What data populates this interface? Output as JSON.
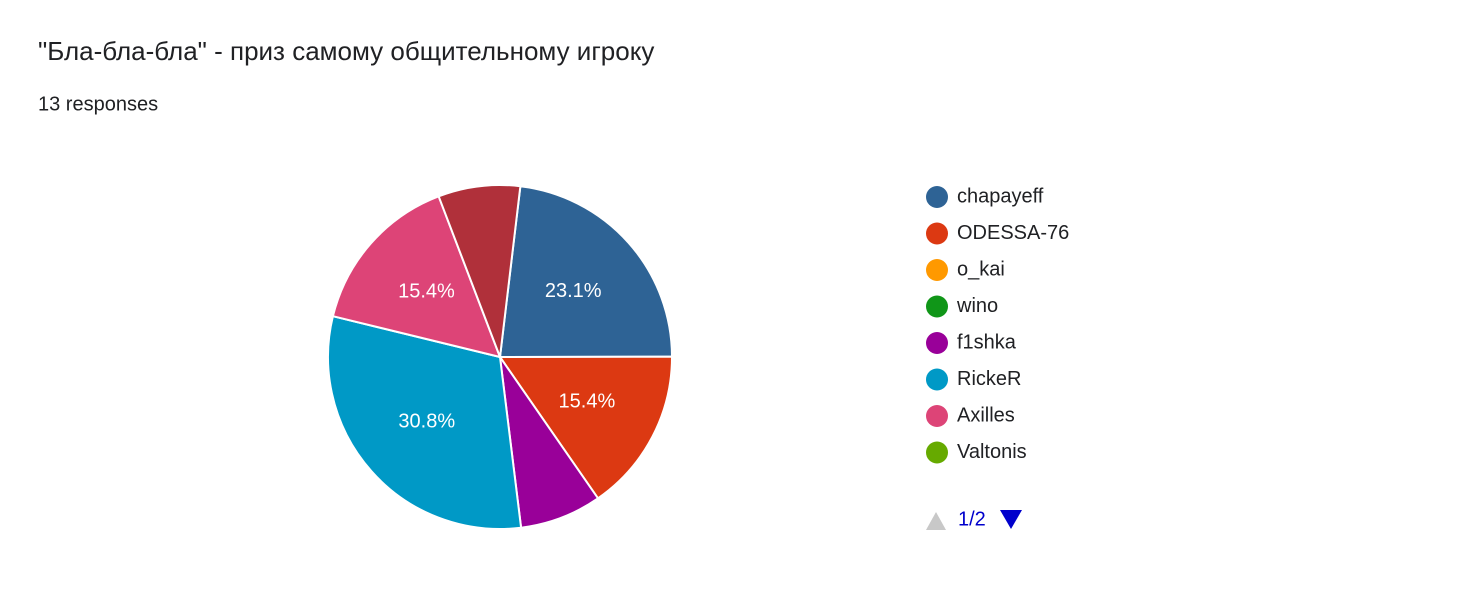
{
  "chart_data": {
    "type": "pie",
    "title": "\"Бла-бла-бла\" - приз самому общительному игроку",
    "subtitle": "13 responses",
    "categories": [
      "chapayeff",
      "ODESSA-76",
      "o_kai",
      "wino",
      "f1shka",
      "RickeR",
      "Axilles",
      "Valtonis",
      null
    ],
    "values": [
      23.1,
      15.4,
      0,
      0,
      7.7,
      30.8,
      15.4,
      0,
      7.7
    ],
    "value_labels": [
      "23.1%",
      "15.4%",
      null,
      null,
      null,
      "30.8%",
      "15.4%",
      null,
      null
    ],
    "colors": [
      "#2e6395",
      "#dc3912",
      "#ff9900",
      "#109618",
      "#990099",
      "#0099c6",
      "#dd4477",
      "#66aa00",
      "#b0303a"
    ],
    "legend_position": "right",
    "legend_page": "1/2"
  }
}
